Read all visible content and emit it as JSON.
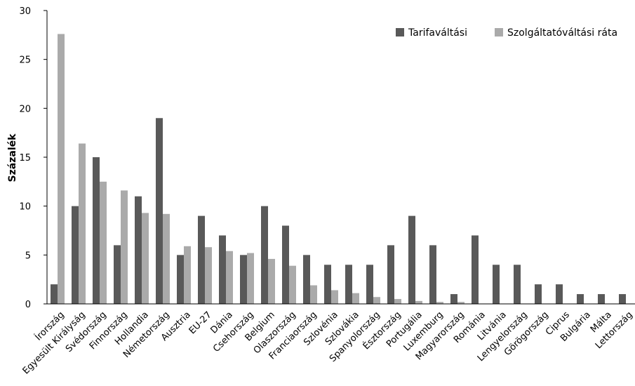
{
  "chart_data": {
    "type": "bar",
    "title": "",
    "xlabel": "",
    "ylabel": "Százalék",
    "ylim": [
      0,
      30
    ],
    "yticks": [
      0,
      5,
      10,
      15,
      20,
      25,
      30
    ],
    "grid": false,
    "legend_position": "top-right",
    "categories": [
      "Írország",
      "Egyesült Királyság",
      "Svédország",
      "Finnország",
      "Hollandia",
      "Németország",
      "Ausztria",
      "EU-27",
      "Dánia",
      "Csehország",
      "Belgium",
      "Olaszország",
      "Franciaország",
      "Szlovénia",
      "Szlovákia",
      "Spanyolország",
      "Észtország",
      "Portugália",
      "Luxemburg",
      "Magyarország",
      "Románia",
      "Litvánia",
      "Lengyelország",
      "Görögország",
      "Ciprus",
      "Bulgária",
      "Málta",
      "Lettország"
    ],
    "series": [
      {
        "name": "Tarifaváltási",
        "color": "#595959",
        "values": [
          2,
          10,
          15,
          6,
          11,
          19,
          5,
          9,
          7,
          5,
          10,
          8,
          5,
          4,
          4,
          4,
          6,
          9,
          6,
          1,
          7,
          4,
          4,
          2,
          2,
          1,
          1,
          1
        ]
      },
      {
        "name": "Szolgáltatóváltási ráta",
        "color": "#aaaaaa",
        "values": [
          27.6,
          16.4,
          12.5,
          11.6,
          9.3,
          9.2,
          5.9,
          5.8,
          5.4,
          5.2,
          4.6,
          3.9,
          1.9,
          1.4,
          1.1,
          0.7,
          0.5,
          0.3,
          0.2,
          0.2,
          0,
          0,
          0,
          0,
          0,
          0,
          0,
          0
        ]
      }
    ]
  }
}
